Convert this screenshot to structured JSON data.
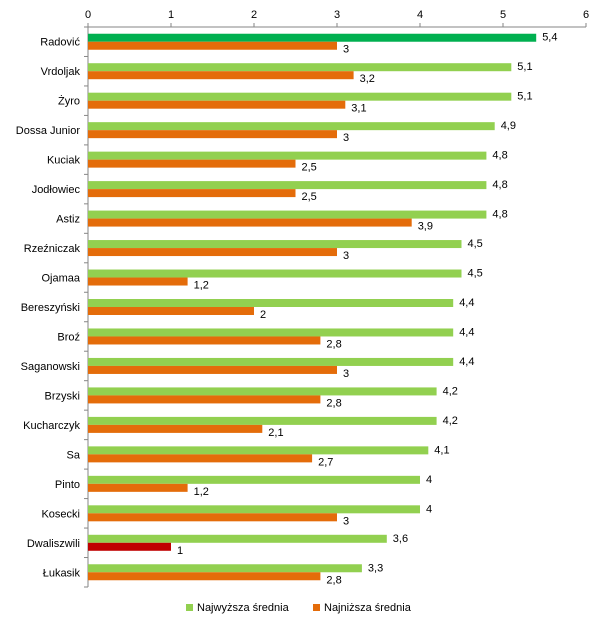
{
  "chart_data": {
    "type": "bar",
    "orientation": "horizontal",
    "categories": [
      "Radović",
      "Vrdoljak",
      "Żyro",
      "Dossa Junior",
      "Kuciak",
      "Jodłowiec",
      "Astiz",
      "Rzeźniczak",
      "Ojamaa",
      "Bereszyński",
      "Broź",
      "Saganowski",
      "Brzyski",
      "Kucharczyk",
      "Sa",
      "Pinto",
      "Kosecki",
      "Dwaliszwili",
      "Łukasik"
    ],
    "series": [
      {
        "name": "Najwyższa średnia",
        "color": "#92d050",
        "values": [
          5.4,
          5.1,
          5.1,
          4.9,
          4.8,
          4.8,
          4.8,
          4.5,
          4.5,
          4.4,
          4.4,
          4.4,
          4.2,
          4.2,
          4.1,
          4,
          4,
          3.6,
          3.3
        ],
        "labels": [
          "5,4",
          "5,1",
          "5,1",
          "4,9",
          "4,8",
          "4,8",
          "4,8",
          "4,5",
          "4,5",
          "4,4",
          "4,4",
          "4,4",
          "4,2",
          "4,2",
          "4,1",
          "4",
          "4",
          "3,6",
          "3,3"
        ]
      },
      {
        "name": "Najniższa średnia",
        "color": "#e46c0a",
        "values": [
          3,
          3.2,
          3.1,
          3,
          2.5,
          2.5,
          3.9,
          3,
          1.2,
          2,
          2.8,
          3,
          2.8,
          2.1,
          2.7,
          1.2,
          3,
          1,
          2.8
        ],
        "labels": [
          "3",
          "3,2",
          "3,1",
          "3",
          "2,5",
          "2,5",
          "3,9",
          "3",
          "1,2",
          "2",
          "2,8",
          "3",
          "2,8",
          "2,1",
          "2,7",
          "1,2",
          "3",
          "1",
          "2,8"
        ]
      }
    ],
    "highlights": [
      {
        "series": 0,
        "index": 0,
        "color": "#00b050"
      },
      {
        "series": 1,
        "index": 17,
        "color": "#c00000"
      }
    ],
    "xlim": [
      0,
      6
    ],
    "xticks": [
      "0",
      "1",
      "2",
      "3",
      "4",
      "5",
      "6"
    ],
    "axis_position": "top",
    "grid": false,
    "legend_position": "bottom"
  }
}
